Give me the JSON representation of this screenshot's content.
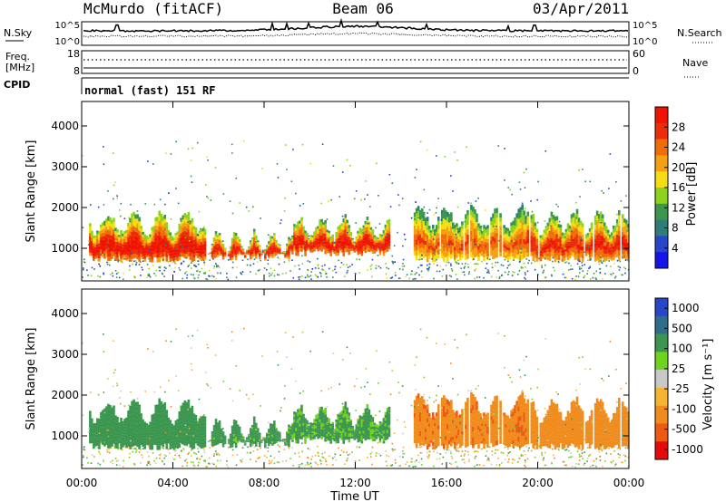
{
  "header": {
    "station": "McMurdo (fitACF)",
    "beam": "Beam 06",
    "date": "03/Apr/2011"
  },
  "labels": {
    "nsky": "N.Sky",
    "nsearch": "N.Search",
    "freq_top": "Freq.",
    "freq_unit": "[MHz]",
    "cpid": "CPID",
    "nave": "Nave",
    "mode": "normal (fast) 151 RF"
  },
  "small_axes": {
    "noise_ticks": [
      "10^5",
      "10^0"
    ],
    "freq_ticks": [
      "18",
      "8"
    ],
    "nave_ticks": [
      "60",
      "0"
    ]
  },
  "colors": {
    "power_scale": [
      "#1414e6",
      "#2846c8",
      "#2e7d78",
      "#3c9650",
      "#8cd21e",
      "#f5dc14",
      "#f5a014",
      "#f06e0a",
      "#ec2d0a",
      "#f01400"
    ],
    "velocity_scale": [
      "#e60a0a",
      "#ec5a14",
      "#f08c1e",
      "#f5b432",
      "#c8c8c8",
      "#6ed21e",
      "#3c9650",
      "#2e6e8c",
      "#2846c8"
    ]
  },
  "chart_data": [
    {
      "type": "heatmap",
      "title": "Power",
      "ylabel": "Slant Range [km]",
      "ylim": [
        200,
        4600
      ],
      "yticks": [
        "1000",
        "2000",
        "3000",
        "4000"
      ],
      "colorbar_label": "Power [dB]",
      "colorbar_ticks": [
        "4",
        "8",
        "12",
        "16",
        "20",
        "24",
        "28"
      ],
      "colorbar_range": [
        0,
        32
      ],
      "bands": [
        {
          "t0": 0.3,
          "t1": 5.4,
          "r_low": 650,
          "r_high": 1950,
          "power": 28
        },
        {
          "t0": 5.4,
          "t1": 9.1,
          "r_low": 700,
          "r_high": 1500,
          "power": 26
        },
        {
          "t0": 9.1,
          "t1": 13.5,
          "r_low": 800,
          "r_high": 1850,
          "power": 27
        },
        {
          "t0": 14.5,
          "t1": 19.5,
          "r_low": 650,
          "r_high": 2100,
          "power": 22
        },
        {
          "t0": 19.5,
          "t1": 24.0,
          "r_low": 650,
          "r_high": 2000,
          "power": 25
        }
      ]
    },
    {
      "type": "heatmap",
      "title": "Velocity",
      "ylabel": "Slant Range [km]",
      "xlabel": "Time UT",
      "xticks": [
        "00:00",
        "04:00",
        "08:00",
        "12:00",
        "16:00",
        "20:00",
        "00:00"
      ],
      "xlim": [
        0,
        24
      ],
      "ylim": [
        200,
        4600
      ],
      "yticks": [
        "1000",
        "2000",
        "3000",
        "4000"
      ],
      "colorbar_label": "Velocity [m s⁻¹]",
      "colorbar_ticks": [
        "1000",
        "500",
        "100",
        "25",
        "-25",
        "-100",
        "-500",
        "-1000"
      ],
      "bands": [
        {
          "t0": 0.3,
          "t1": 5.4,
          "r_low": 650,
          "r_high": 1950,
          "velocity": 300
        },
        {
          "t0": 5.4,
          "t1": 9.1,
          "r_low": 700,
          "r_high": 1500,
          "velocity": 150
        },
        {
          "t0": 9.1,
          "t1": 13.5,
          "r_low": 800,
          "r_high": 1850,
          "velocity": 120
        },
        {
          "t0": 14.5,
          "t1": 19.5,
          "r_low": 650,
          "r_high": 2100,
          "velocity": -400
        },
        {
          "t0": 19.5,
          "t1": 24.0,
          "r_low": 650,
          "r_high": 2000,
          "velocity": -200
        }
      ]
    }
  ]
}
